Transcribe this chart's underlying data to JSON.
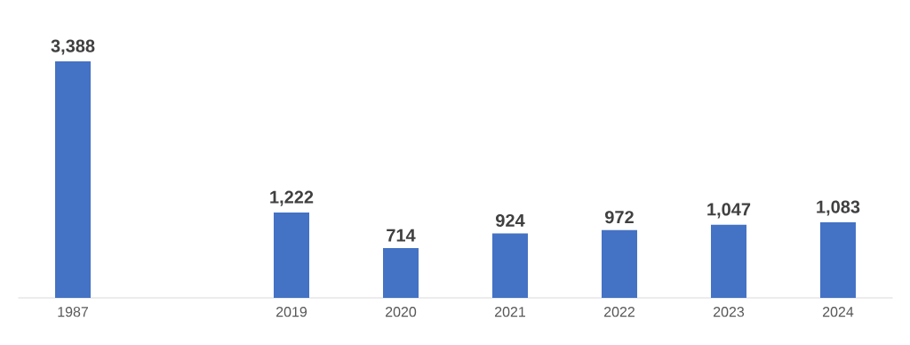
{
  "chart_data": {
    "type": "bar",
    "categories": [
      "1987",
      null,
      "2019",
      "2020",
      "2021",
      "2022",
      "2023",
      "2024"
    ],
    "values": [
      3388,
      null,
      1222,
      714,
      924,
      972,
      1047,
      1083
    ],
    "value_labels": [
      "3,388",
      null,
      "1,222",
      "714",
      "924",
      "972",
      "1,047",
      "1,083"
    ],
    "color": "#4472c4"
  }
}
